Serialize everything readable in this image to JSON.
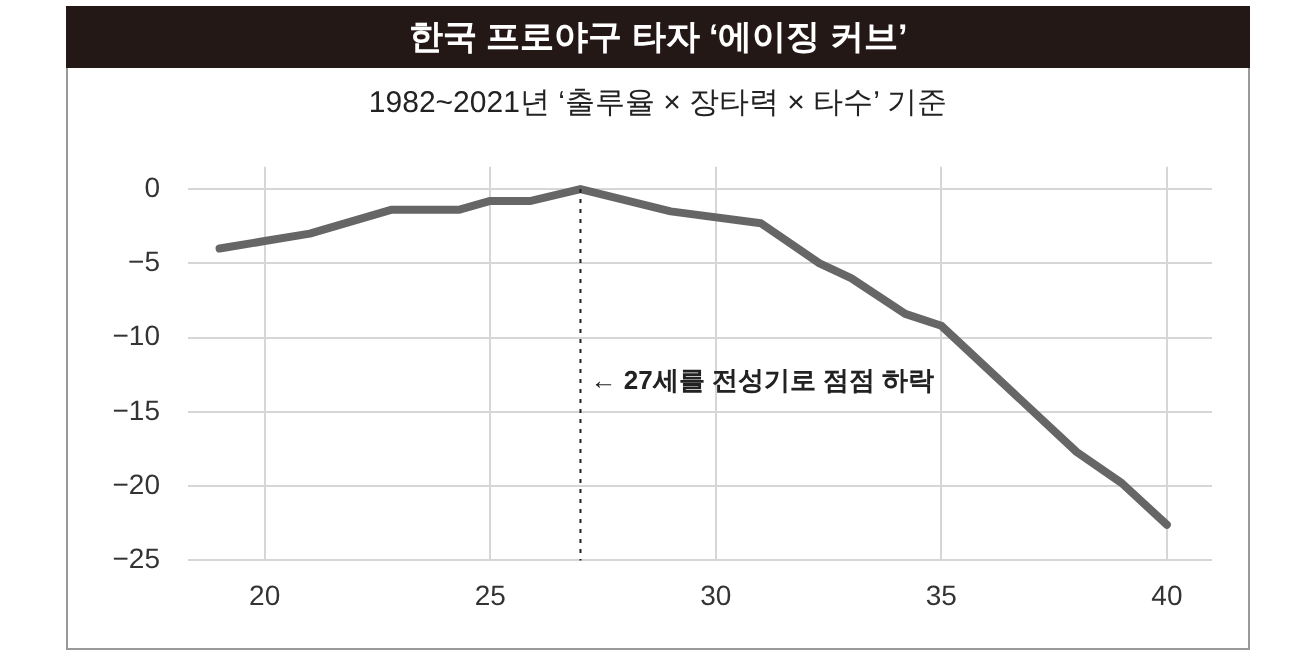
{
  "chart_data": {
    "type": "line",
    "title": "한국 프로야구 타자 ‘에이징 커브’",
    "subtitle": "1982~2021년 ‘출루율 × 장타력 × 타수’ 기준",
    "x": [
      19,
      20,
      21,
      22.8,
      24.3,
      25,
      25.9,
      27,
      29,
      31,
      32.3,
      33,
      34.2,
      35,
      38,
      39,
      40
    ],
    "series": [
      {
        "color": "#666666",
        "values": [
          -4,
          -3.5,
          -3,
          -1.4,
          -1.4,
          -0.8,
          -0.8,
          0,
          -1.5,
          -2.3,
          -5,
          -6,
          -8.4,
          -9.2,
          -17.7,
          -19.8,
          -22.6
        ]
      }
    ],
    "xlim": [
      18.3,
      41
    ],
    "ylim": [
      -25,
      1.5
    ],
    "xticks": [
      20,
      25,
      30,
      35,
      40
    ],
    "yticks": [
      0,
      -5,
      -10,
      -15,
      -20,
      -25
    ],
    "ref_lines": [
      {
        "axis": "x",
        "value": 27,
        "line_style": "dotted",
        "color": "#222222"
      }
    ],
    "annotations": [
      {
        "text": "← 27세를 전성기로 점점 하락",
        "x": 27,
        "y": -13
      }
    ],
    "grid": true,
    "legend": false,
    "marker": "none",
    "line_style": "solid"
  }
}
